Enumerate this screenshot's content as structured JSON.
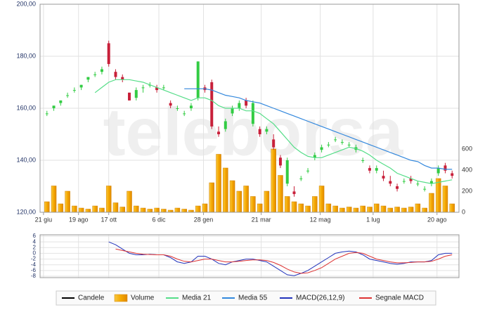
{
  "chart_data": [
    {
      "type": "candlestick",
      "watermark": "teleborsa",
      "x": [
        1,
        2,
        3,
        4,
        5,
        6,
        7,
        8,
        9,
        10,
        11,
        12,
        13,
        14,
        15,
        16,
        17,
        18,
        19,
        20,
        21,
        22,
        23,
        24,
        25,
        26,
        27,
        28,
        29,
        30,
        31,
        32,
        33,
        34,
        35,
        36,
        37,
        38,
        39,
        40,
        41,
        42,
        43,
        44,
        45,
        46,
        47,
        48,
        49,
        50,
        51,
        52,
        53,
        54,
        55,
        56,
        57,
        58,
        59,
        60
      ],
      "xlim": [
        0,
        61
      ],
      "xticks": [
        {
          "value": 0.5,
          "label": "21 giu"
        },
        {
          "value": 5.6,
          "label": "19 ago"
        },
        {
          "value": 10,
          "label": "17 ott"
        },
        {
          "value": 17.3,
          "label": "6 dic"
        },
        {
          "value": 23.8,
          "label": "28 gen"
        },
        {
          "value": 32.2,
          "label": "21 mar"
        },
        {
          "value": 40.8,
          "label": "12 mag"
        },
        {
          "value": 48.5,
          "label": "1 lug"
        },
        {
          "value": 57.8,
          "label": "20 ago"
        }
      ],
      "ylim": [
        120,
        200
      ],
      "yticks": [
        {
          "value": 120,
          "label": "120,00"
        },
        {
          "value": 140,
          "label": "140,00"
        },
        {
          "value": 160,
          "label": "160,00"
        },
        {
          "value": 180,
          "label": "180,00"
        },
        {
          "value": 200,
          "label": "200,00"
        }
      ],
      "y2lim": [
        0,
        1973
      ],
      "y2ticks": [
        0,
        200,
        400,
        600
      ],
      "grid": true,
      "series": [
        {
          "name": "Candele",
          "color": "#000000",
          "up_color": "#33cc44",
          "down_color": "#c8203a",
          "open": [
            158,
            160,
            162,
            165,
            167,
            168,
            171,
            173,
            174,
            185,
            174,
            172,
            166,
            164,
            168,
            169,
            168,
            168,
            162,
            160,
            158,
            160,
            164,
            168,
            170,
            151,
            152,
            158,
            160,
            163,
            154,
            152,
            151,
            148,
            141,
            131,
            128,
            133,
            136,
            141,
            144,
            146,
            148,
            147,
            146,
            144,
            140,
            137,
            136,
            134,
            132,
            130,
            132,
            133,
            131,
            129,
            131,
            135,
            138,
            135
          ],
          "high": [
            159,
            161,
            163,
            166,
            168,
            169,
            172,
            174,
            176,
            186,
            175,
            173,
            166,
            168,
            169,
            170,
            169,
            169,
            163,
            161,
            159,
            162,
            178,
            169,
            171,
            153,
            156,
            161,
            163,
            164,
            163,
            153,
            153,
            150,
            142,
            141,
            130,
            134,
            137,
            143,
            146,
            147,
            149,
            148,
            147,
            146,
            141,
            138,
            138,
            136,
            134,
            131,
            133,
            134,
            132,
            130,
            133,
            138,
            139,
            136
          ],
          "low": [
            157,
            159,
            161,
            164,
            166,
            167,
            170,
            172,
            173,
            176,
            171,
            170,
            163,
            163,
            166,
            168,
            166,
            167,
            160,
            159,
            157,
            159,
            163,
            166,
            152,
            149,
            151,
            157,
            159,
            160,
            153,
            149,
            150,
            144,
            137,
            130,
            126,
            132,
            135,
            140,
            143,
            145,
            147,
            146,
            145,
            143,
            139,
            135,
            135,
            132,
            130,
            128,
            131,
            131,
            130,
            128,
            130,
            134,
            135,
            133
          ],
          "close": [
            158,
            161,
            163,
            165,
            167,
            169,
            172,
            173,
            175,
            177,
            172,
            171,
            163,
            167,
            168,
            169,
            167,
            168,
            161,
            160,
            158,
            161,
            178,
            167,
            153,
            150,
            155,
            160,
            162,
            161,
            162,
            150,
            152,
            145,
            138,
            140,
            127,
            133,
            136,
            142,
            145,
            146,
            148,
            147,
            146,
            145,
            140,
            136,
            137,
            133,
            131,
            129,
            132,
            132,
            131,
            129,
            132,
            137,
            136,
            134
          ]
        },
        {
          "name": "Volume",
          "type": "bar",
          "axis": "y2",
          "color": "#f5a800",
          "values": [
            100,
            250,
            80,
            200,
            60,
            40,
            30,
            60,
            40,
            250,
            90,
            50,
            200,
            60,
            40,
            30,
            40,
            30,
            20,
            40,
            30,
            20,
            60,
            80,
            280,
            550,
            420,
            300,
            200,
            250,
            150,
            80,
            200,
            600,
            350,
            150,
            100,
            80,
            60,
            150,
            250,
            80,
            60,
            40,
            50,
            40,
            60,
            50,
            80,
            60,
            40,
            50,
            40,
            50,
            80,
            40,
            180,
            320,
            250,
            80
          ]
        },
        {
          "name": "Media 21",
          "type": "line",
          "color": "#55dd88",
          "values": [
            null,
            null,
            null,
            null,
            null,
            null,
            null,
            166,
            168,
            170,
            171,
            171,
            171,
            170.5,
            170,
            169,
            168,
            167,
            166,
            165,
            164,
            163,
            164,
            164,
            163,
            161,
            160,
            160,
            160,
            159,
            159,
            158,
            156,
            154,
            151,
            148,
            145,
            143,
            141.5,
            141,
            141,
            142,
            143,
            144,
            145,
            144.5,
            143.5,
            142,
            140,
            138.5,
            137,
            135,
            134,
            133,
            132,
            131.5,
            131,
            131.5,
            132,
            132.5
          ]
        },
        {
          "name": "Media 55",
          "type": "line",
          "color": "#3388dd",
          "values": [
            null,
            null,
            null,
            null,
            null,
            null,
            null,
            null,
            null,
            null,
            null,
            null,
            null,
            null,
            null,
            null,
            null,
            null,
            null,
            null,
            167.5,
            167.5,
            167.5,
            167.5,
            167,
            166,
            165,
            164.5,
            164,
            163,
            162.5,
            162,
            161,
            160,
            159,
            158,
            157,
            156,
            155,
            154,
            153,
            152,
            151,
            150,
            149,
            148,
            147,
            146,
            145,
            144,
            143,
            142,
            141,
            140,
            139.5,
            138,
            137,
            137,
            136.5,
            136.5
          ]
        }
      ]
    },
    {
      "type": "line",
      "x": [
        1,
        2,
        3,
        4,
        5,
        6,
        7,
        8,
        9,
        10,
        11,
        12,
        13,
        14,
        15,
        16,
        17,
        18,
        19,
        20,
        21,
        22,
        23,
        24,
        25,
        26,
        27,
        28,
        29,
        30,
        31,
        32,
        33,
        34,
        35,
        36,
        37,
        38,
        39,
        40,
        41,
        42,
        43,
        44,
        45,
        46,
        47,
        48,
        49,
        50,
        51,
        52,
        53,
        54,
        55,
        56,
        57,
        58,
        59,
        60
      ],
      "xlim": [
        0,
        61
      ],
      "ylim": [
        -8.5,
        6.5
      ],
      "yticks": [
        -8,
        -6,
        -4,
        -2,
        0,
        2,
        4,
        6
      ],
      "grid": true,
      "series": [
        {
          "name": "MACD(26,12,9)",
          "color": "#2233bb",
          "values": [
            null,
            null,
            null,
            null,
            null,
            null,
            null,
            null,
            null,
            4,
            3,
            1.5,
            0,
            -0.5,
            -0.5,
            -0.3,
            -0.5,
            -0.5,
            -1.5,
            -3,
            -3.5,
            -3,
            -1,
            -1,
            -2,
            -3.5,
            -4,
            -3,
            -2.5,
            -2,
            -2,
            -2.5,
            -3,
            -4.5,
            -6,
            -7.5,
            -7.8,
            -7,
            -6,
            -4.5,
            -3,
            -1.5,
            0,
            0.5,
            0.8,
            0.5,
            -0.5,
            -2,
            -2.5,
            -3,
            -3.5,
            -3.8,
            -3.5,
            -3,
            -3,
            -3,
            -2.5,
            -0.5,
            0,
            0
          ]
        },
        {
          "name": "Segnale MACD",
          "color": "#dd3333",
          "values": [
            null,
            null,
            null,
            null,
            null,
            null,
            null,
            null,
            null,
            null,
            1.5,
            1,
            0.5,
            0,
            -0.3,
            -0.4,
            -0.5,
            -0.5,
            -1,
            -2,
            -2.8,
            -3,
            -2.5,
            -2,
            -2,
            -2.5,
            -3,
            -3,
            -2.8,
            -2.5,
            -2.3,
            -2.3,
            -2.5,
            -3.2,
            -4.2,
            -5.5,
            -6.5,
            -7,
            -6.8,
            -6,
            -5,
            -3.5,
            -2,
            -1,
            0,
            0.3,
            0,
            -1,
            -2,
            -2.5,
            -3,
            -3.3,
            -3.3,
            -3.2,
            -3,
            -3,
            -2.8,
            -2,
            -1,
            -0.5
          ]
        }
      ]
    }
  ]
}
